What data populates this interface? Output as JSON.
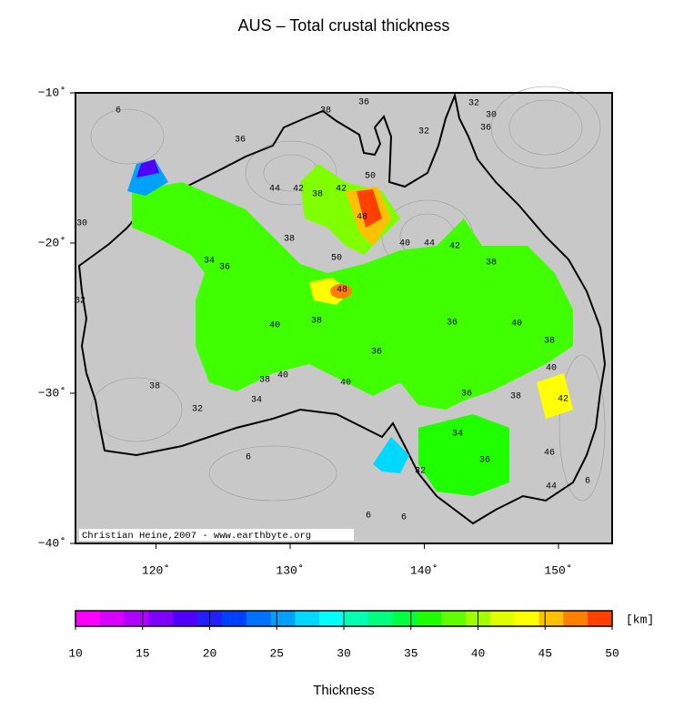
{
  "title": "AUS – Total crustal thickness",
  "map": {
    "xaxis": {
      "lim": [
        114,
        154
      ],
      "ticks": [
        {
          "value": 120,
          "label": "120˚"
        },
        {
          "value": 130,
          "label": "130˚"
        },
        {
          "value": 140,
          "label": "140˚"
        },
        {
          "value": 150,
          "label": "150˚"
        }
      ]
    },
    "yaxis": {
      "lim": [
        -10,
        -40
      ],
      "ticks": [
        {
          "value": -10,
          "label": "−10˚"
        },
        {
          "value": -20,
          "label": "−20˚"
        },
        {
          "value": -30,
          "label": "−30˚"
        },
        {
          "value": -40,
          "label": "−40˚"
        }
      ]
    },
    "credit": "Christian Heine,2007 - www.earthbyte.org",
    "contour_labels": [
      6,
      36,
      38,
      36,
      32,
      30,
      32,
      44,
      42,
      42,
      48,
      50,
      40,
      44,
      42,
      38,
      38,
      30,
      34,
      36,
      38,
      50,
      48,
      40,
      38,
      36,
      36,
      40,
      38,
      40,
      38,
      36,
      40,
      38,
      32,
      34,
      32,
      38,
      40,
      36,
      42,
      46,
      44,
      6,
      6,
      6,
      32,
      36,
      34,
      6
    ]
  },
  "colorbar": {
    "ticks": [
      10,
      15,
      20,
      25,
      30,
      35,
      40,
      45,
      50
    ],
    "unit": "[km]",
    "label": "Thickness",
    "colors": [
      "#ff00ff",
      "#d800ff",
      "#b000ff",
      "#8000ff",
      "#5000ff",
      "#2020ff",
      "#0040ff",
      "#0070ff",
      "#00a0ff",
      "#00d8ff",
      "#00ffff",
      "#00ffb0",
      "#00ff80",
      "#00ff40",
      "#20ff00",
      "#60ff00",
      "#a0ff00",
      "#e0ff00",
      "#ffff00",
      "#ffc000",
      "#ff8000",
      "#ff4000"
    ]
  }
}
